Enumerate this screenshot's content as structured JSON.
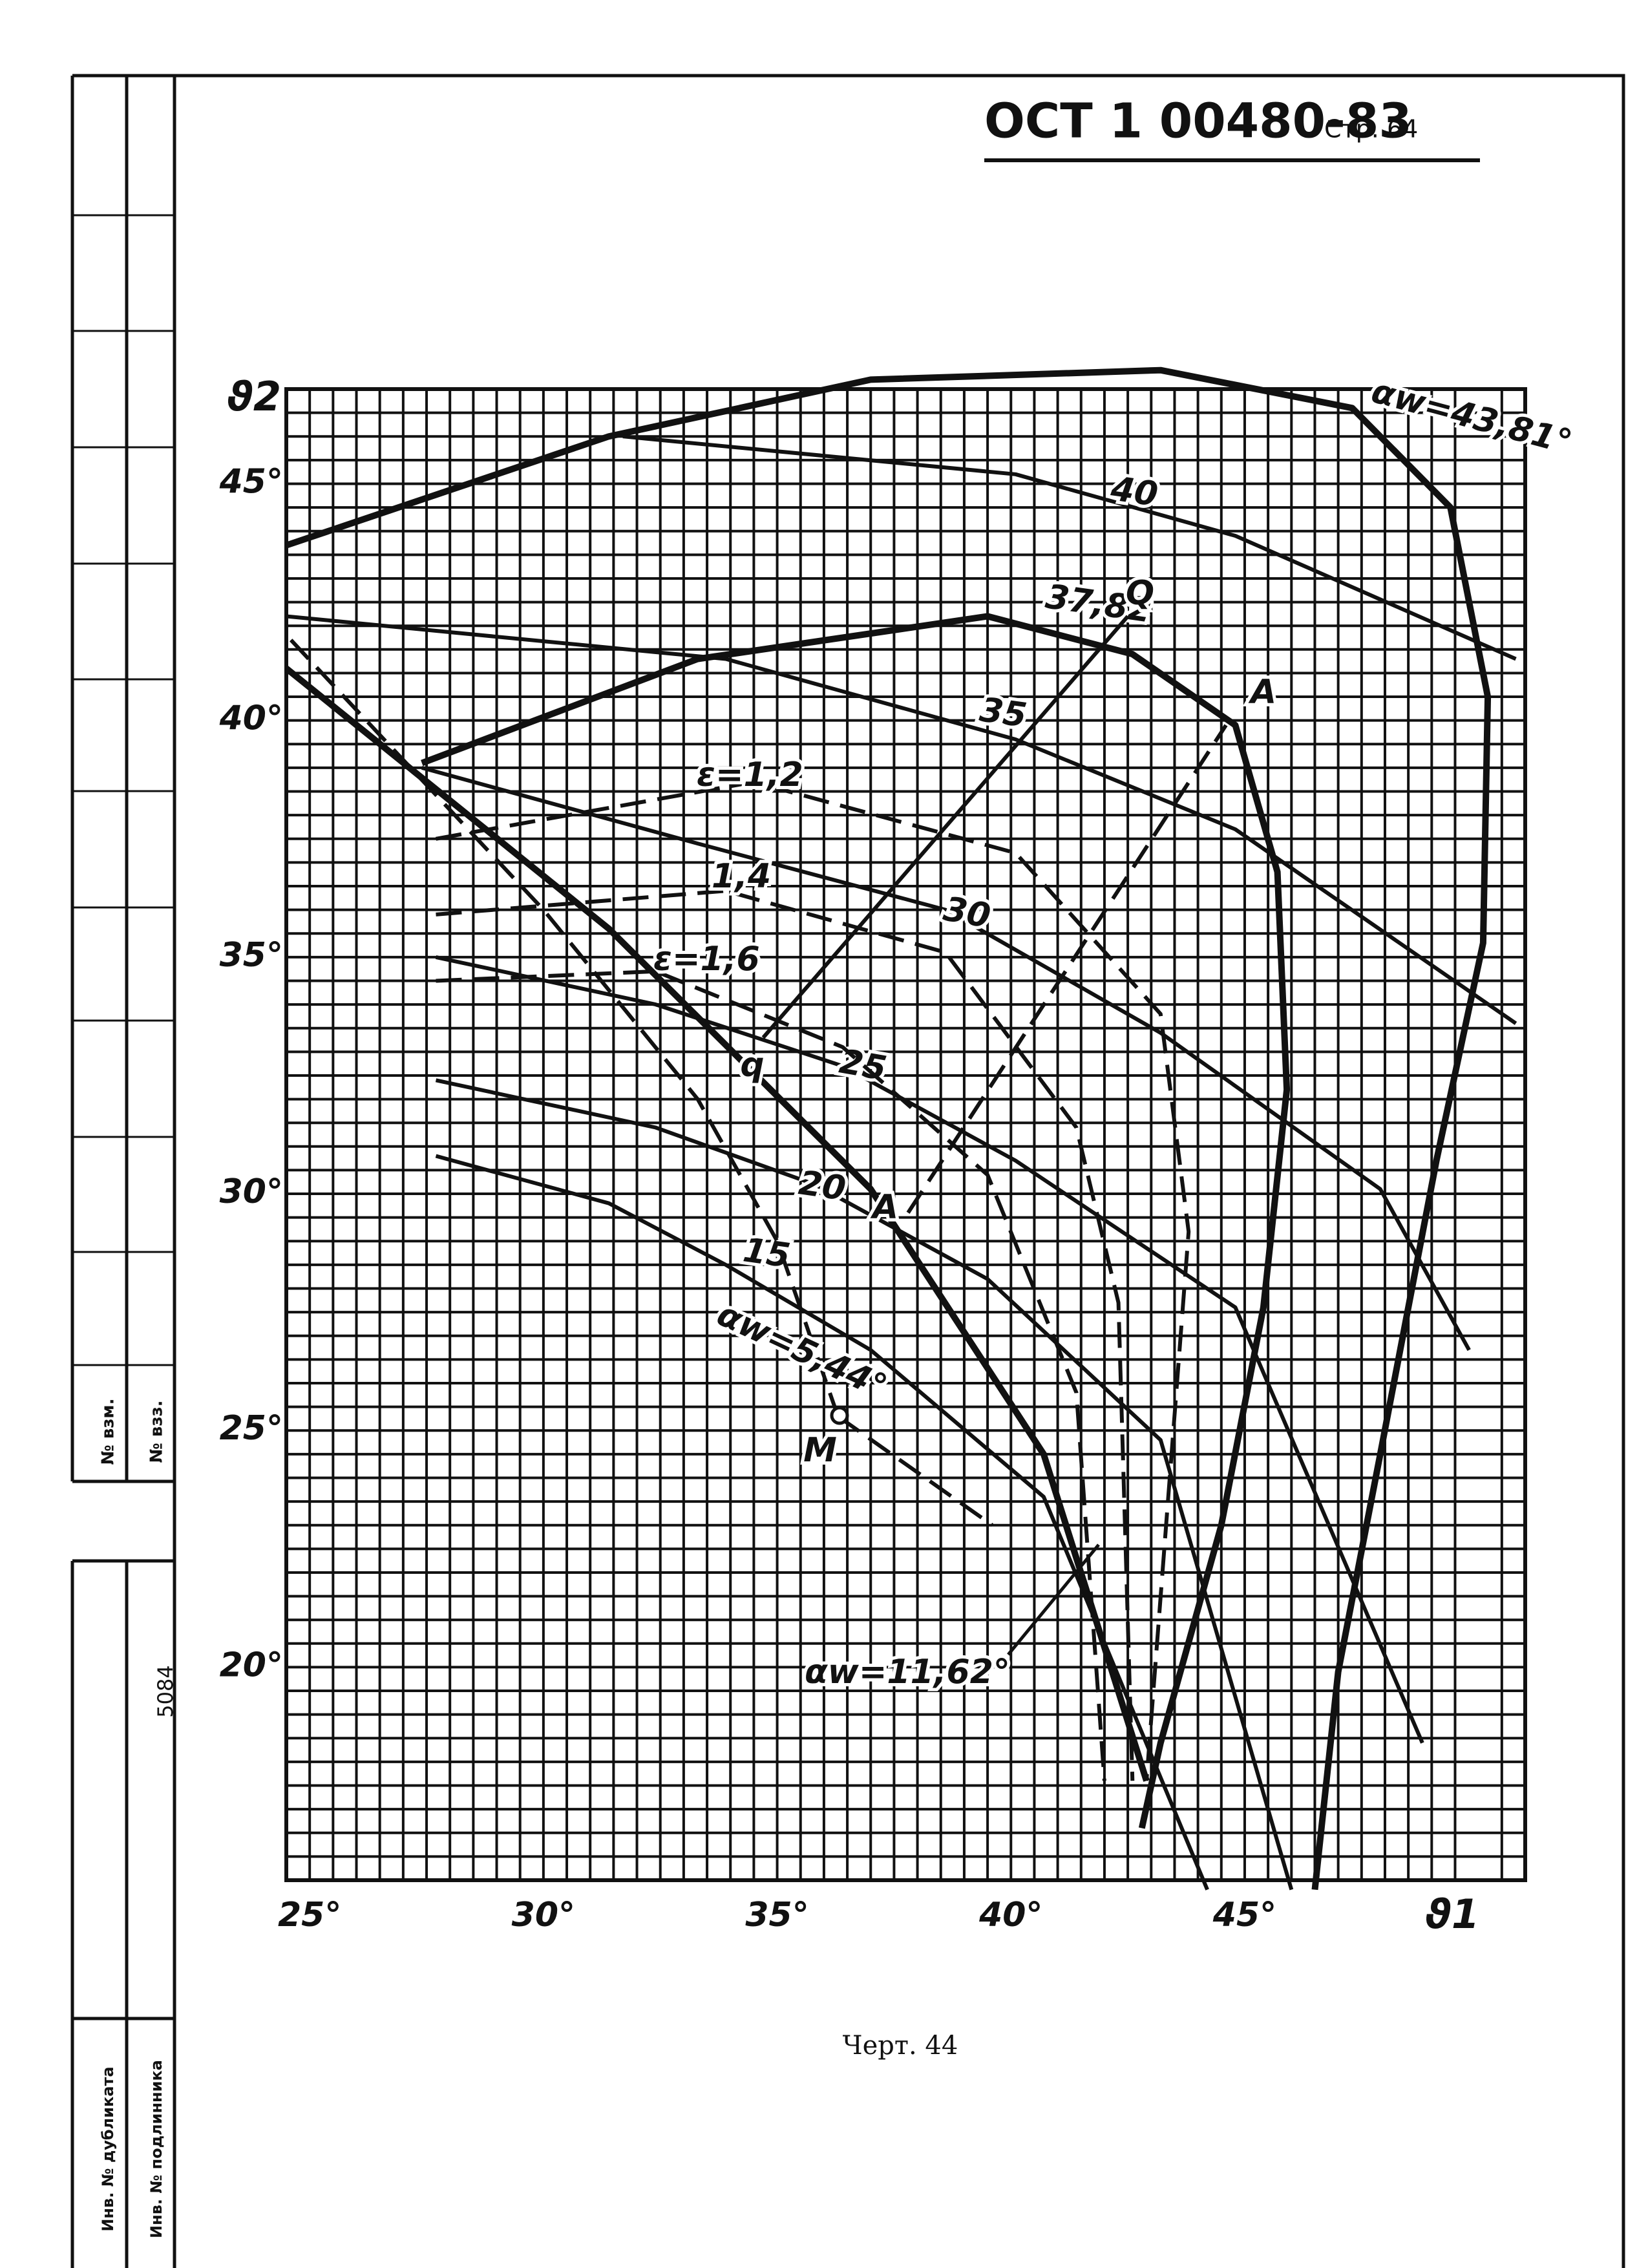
{
  "header": {
    "title": "ОСТ 1 00480-83",
    "page": "Стр. 64"
  },
  "caption": "Черт. 44",
  "stamp": [
    "№ взм.",
    "№ взз.",
    "5084",
    "Инв. № дубликата",
    "Инв. № подлинника"
  ],
  "chart_data": {
    "type": "line",
    "xlabel": "ϑ1",
    "ylabel": "ϑ2",
    "xlim": [
      24.5,
      51
    ],
    "ylim": [
      15.5,
      47
    ],
    "grid": true,
    "xticks": [
      {
        "value": 25,
        "label": "25°"
      },
      {
        "value": 30,
        "label": "30°"
      },
      {
        "value": 35,
        "label": "35°"
      },
      {
        "value": 40,
        "label": "40°"
      },
      {
        "value": 45,
        "label": "45°"
      }
    ],
    "yticks": [
      {
        "value": 20,
        "label": "20°"
      },
      {
        "value": 25,
        "label": "25°"
      },
      {
        "value": 30,
        "label": "30°"
      },
      {
        "value": 35,
        "label": "35°"
      },
      {
        "value": 40,
        "label": "40°"
      },
      {
        "value": 45,
        "label": "45°"
      }
    ],
    "annotations": [
      "Q",
      "q",
      "A",
      "A",
      "M",
      "αw=11,62°"
    ],
    "series": [
      {
        "name": "αw=43,81°",
        "color": "#111",
        "style": "bold",
        "x": [
          24.5,
          31.4,
          37.0,
          43.2,
          47.3,
          49.4,
          50.2,
          50.1,
          49.1,
          47.9,
          47.0,
          46.5
        ],
        "values": [
          43.7,
          46.0,
          47.2,
          47.4,
          46.6,
          44.5,
          40.5,
          35.3,
          30.7,
          24.5,
          19.9,
          15.3
        ]
      },
      {
        "name": "37,82",
        "color": "#111",
        "style": "bold",
        "x": [
          27.4,
          33.3,
          39.5,
          42.6,
          44.8,
          45.7,
          45.9,
          45.4,
          44.5,
          43.2,
          42.8
        ],
        "values": [
          39.1,
          41.3,
          42.2,
          41.4,
          39.9,
          36.8,
          32.2,
          27.6,
          23.0,
          18.4,
          16.6
        ]
      },
      {
        "name": "40",
        "color": "#111",
        "style": "solid",
        "x": [
          31.7,
          40.1,
          44.8,
          50.8
        ],
        "values": [
          46.0,
          45.2,
          43.9,
          41.3
        ]
      },
      {
        "name": "35",
        "color": "#111",
        "style": "solid",
        "x": [
          24.5,
          33.9,
          40.1,
          44.8,
          50.8
        ],
        "values": [
          42.2,
          41.3,
          39.6,
          37.7,
          33.6
        ]
      },
      {
        "name": "30",
        "color": "#111",
        "style": "solid",
        "x": [
          27.4,
          33.3,
          38.6,
          43.2,
          47.9,
          49.8
        ],
        "values": [
          39.0,
          37.4,
          36.0,
          33.4,
          30.1,
          26.7
        ]
      },
      {
        "name": "25",
        "color": "#111",
        "style": "solid",
        "x": [
          27.7,
          32.4,
          36.4,
          40.1,
          44.8,
          48.8
        ],
        "values": [
          35.0,
          34.0,
          32.7,
          30.7,
          27.6,
          18.4
        ]
      },
      {
        "name": "20",
        "color": "#111",
        "style": "solid",
        "x": [
          27.7,
          32.4,
          35.8,
          39.5,
          43.2,
          46.0
        ],
        "values": [
          32.4,
          31.4,
          30.2,
          28.2,
          24.8,
          15.3
        ]
      },
      {
        "name": "15",
        "color": "#111",
        "style": "solid",
        "x": [
          27.7,
          31.4,
          33.9,
          37.0,
          40.7,
          44.2
        ],
        "values": [
          30.8,
          29.8,
          28.5,
          26.7,
          23.6,
          15.3
        ]
      },
      {
        "name": "ε=1,2",
        "color": "#111",
        "style": "dashed",
        "x": [
          27.7,
          34.5,
          40.1,
          43.2,
          43.8,
          42.9
        ],
        "values": [
          37.5,
          38.7,
          37.2,
          33.8,
          29.2,
          17.6
        ]
      },
      {
        "name": "1,4",
        "color": "#111",
        "style": "dashed",
        "x": [
          27.7,
          33.9,
          38.6,
          41.4,
          42.3,
          42.6
        ],
        "values": [
          35.9,
          36.4,
          35.1,
          31.4,
          27.7,
          17.6
        ]
      },
      {
        "name": "ε=1,6",
        "color": "#111",
        "style": "dashed",
        "x": [
          27.7,
          32.4,
          36.4,
          39.5,
          41.4,
          42.0
        ],
        "values": [
          34.5,
          34.7,
          33.1,
          30.4,
          25.8,
          17.6
        ]
      },
      {
        "name": "αw=5,44°",
        "color": "#111",
        "style": "dashed",
        "x": [
          24.6,
          30.0,
          33.3,
          35.0,
          36.3
        ],
        "values": [
          41.7,
          36.0,
          32.0,
          29.0,
          25.3
        ]
      },
      {
        "color": "#111",
        "style": "bold",
        "x": [
          24.5,
          31.4,
          37.0,
          40.7,
          42.9
        ],
        "values": [
          41.1,
          35.6,
          30.1,
          24.5,
          17.6
        ]
      },
      {
        "color": "#111",
        "style": "solid",
        "x": [
          34.7,
          42.5
        ],
        "values": [
          33.3,
          42.2
        ]
      },
      {
        "color": "#111",
        "style": "dashed",
        "x": [
          37.8,
          44.6
        ],
        "values": [
          29.6,
          39.9
        ]
      },
      {
        "color": "#111",
        "style": "dashed",
        "x": [
          36.3,
          39.6
        ],
        "values": [
          25.3,
          23.0
        ]
      }
    ]
  }
}
